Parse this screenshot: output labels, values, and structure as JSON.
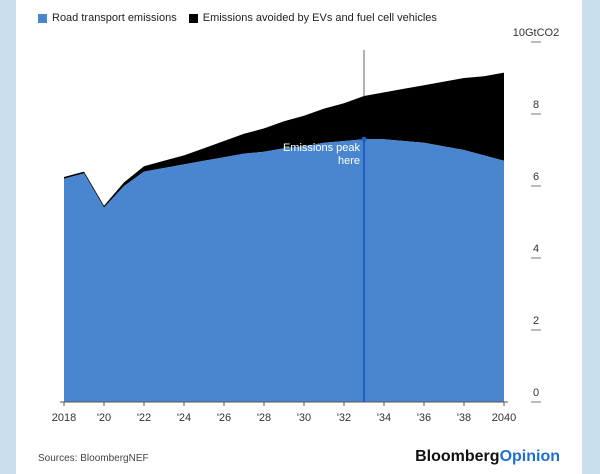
{
  "chart_data": {
    "type": "area",
    "unit_label": "10GtCO2",
    "x": [
      2018,
      2019,
      2020,
      2021,
      2022,
      2023,
      2024,
      2025,
      2026,
      2027,
      2028,
      2029,
      2030,
      2031,
      2032,
      2033,
      2034,
      2035,
      2036,
      2037,
      2038,
      2039,
      2040
    ],
    "x_tick_labels": [
      "2018",
      "'20",
      "'22",
      "'24",
      "'26",
      "'28",
      "'30",
      "'32",
      "'34",
      "'36",
      "'38",
      "2040"
    ],
    "y_tick_labels": [
      "0",
      "2",
      "4",
      "6",
      "8"
    ],
    "ylim": [
      0,
      10
    ],
    "series": [
      {
        "name": "Road transport emissions",
        "color": "#4a86cf",
        "values": [
          6.2,
          6.35,
          5.4,
          6.0,
          6.4,
          6.5,
          6.6,
          6.7,
          6.8,
          6.9,
          6.95,
          7.05,
          7.1,
          7.2,
          7.25,
          7.3,
          7.3,
          7.25,
          7.2,
          7.1,
          7.0,
          6.85,
          6.7
        ]
      },
      {
        "name": "Emissions avoided by EVs and fuel cell vehicles",
        "color": "#000000",
        "values": [
          0.05,
          0.05,
          0.05,
          0.1,
          0.15,
          0.2,
          0.25,
          0.35,
          0.45,
          0.55,
          0.65,
          0.75,
          0.85,
          0.95,
          1.05,
          1.2,
          1.3,
          1.45,
          1.6,
          1.8,
          2.0,
          2.2,
          2.45
        ]
      }
    ],
    "annotation": {
      "text": [
        "Emissions peak",
        "here"
      ],
      "x": 2033
    },
    "marker_color": "#1f5fbf",
    "grid": false,
    "legend_position": "top-left"
  },
  "footer": {
    "source": "Sources: BloombergNEF",
    "brand_main": "Bloomberg",
    "brand_accent": "Opinion"
  },
  "colors": {
    "page_background": "#c9dfee",
    "brand_accent": "#1f6fd1"
  }
}
